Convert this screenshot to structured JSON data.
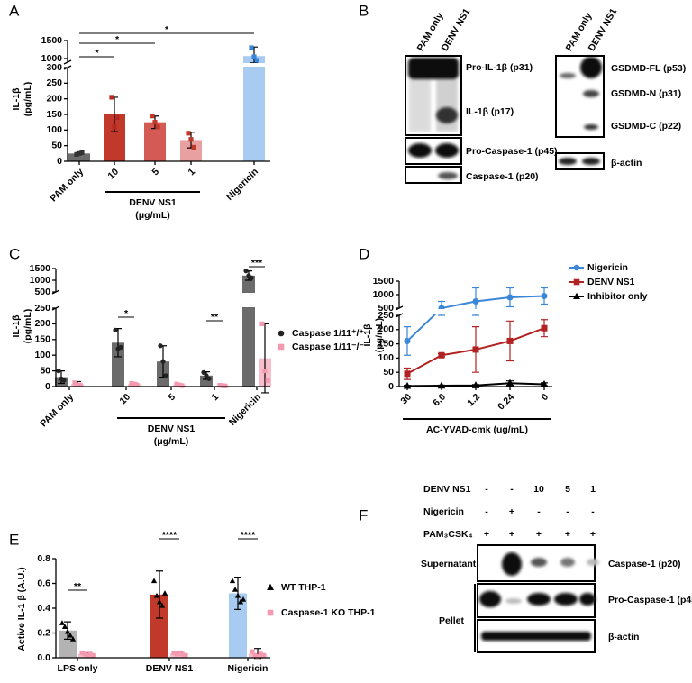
{
  "panel_labels": [
    "A",
    "B",
    "C",
    "D",
    "E",
    "F"
  ],
  "chart_data": [
    {
      "type": "bar",
      "ylabel": [
        "IL-1β",
        "(pg/mL)"
      ],
      "categories": [
        "PAM only",
        "10",
        "5",
        "1",
        "Nigericin"
      ],
      "group_label": [
        "DENV NS1",
        "(μg/mL)"
      ],
      "ylim": [
        0,
        1500
      ],
      "ybreak": [
        300,
        900
      ],
      "yticks": [
        0,
        50,
        100,
        150,
        200,
        250,
        300,
        1000,
        1500
      ],
      "annotations": [
        "*",
        "*",
        "*"
      ],
      "series": [
        {
          "colors": [
            "#6b6b6b",
            "#c0392b",
            "#d45b55",
            "#e8a0a0",
            "#a8cbf2"
          ],
          "point_colors": [
            "#333333",
            "#b52a1f",
            "#c0392b",
            "#c0392b",
            "#3a86d9"
          ],
          "marker": "square",
          "values": [
            25,
            150,
            125,
            68,
            1070
          ],
          "errors": [
            3,
            55,
            20,
            25,
            250
          ],
          "points": [
            [
              22,
              25,
              28
            ],
            [
              205,
              110,
              140
            ],
            [
              145,
              125,
              110
            ],
            [
              90,
              70,
              45
            ],
            [
              1300,
              1050,
              950
            ]
          ]
        }
      ]
    },
    {
      "type": "bar",
      "ylabel": [
        "IL-1β",
        "(pg/mL)"
      ],
      "categories": [
        "PAM only",
        "10",
        "5",
        "1",
        "Nigericin"
      ],
      "group_label": [
        "DENV NS1",
        "(μg/mL)"
      ],
      "ylim": [
        0,
        1500
      ],
      "ybreak": [
        250,
        500
      ],
      "yticks": [
        0,
        50,
        100,
        150,
        200,
        250,
        500,
        1000,
        1500
      ],
      "annotations": [
        "*",
        "**",
        "***"
      ],
      "series": [
        {
          "name": "Caspase 1/11⁺/⁺",
          "color": "#6b6b6b",
          "point_color": "#222222",
          "marker": "circle",
          "values": [
            30,
            140,
            80,
            35,
            1200
          ],
          "errors": [
            20,
            45,
            50,
            12,
            200
          ],
          "points": [
            [
              50,
              25,
              20
            ],
            [
              180,
              120,
              125
            ],
            [
              130,
              80,
              35
            ],
            [
              45,
              35,
              25
            ],
            [
              1400,
              1200,
              1100
            ]
          ]
        },
        {
          "name": "Caspase 1/11⁻/⁻",
          "color": "#f7bfcb",
          "point_color": "#f49ab0",
          "marker": "square",
          "values": [
            8,
            8,
            5,
            3,
            90
          ],
          "errors": [
            8,
            3,
            3,
            2,
            110
          ],
          "points": [
            [
              12,
              5,
              5
            ],
            [
              10,
              8,
              5
            ],
            [
              8,
              5,
              3
            ],
            [
              4,
              3,
              2
            ],
            [
              200,
              50,
              20
            ]
          ]
        }
      ]
    },
    {
      "type": "line",
      "ylabel": [
        "IL-1β",
        "(pg/mL)"
      ],
      "categories": [
        "30",
        "6.0",
        "1.2",
        "0.24",
        "0"
      ],
      "xlabel": "AC-YVAD-cmk (ug/mL)",
      "ylim": [
        0,
        1500
      ],
      "ybreak": [
        250,
        500
      ],
      "yticks": [
        0,
        50,
        100,
        150,
        200,
        250,
        500,
        1000,
        1500
      ],
      "series": [
        {
          "name": "Nigericin",
          "color": "#3a86d9",
          "marker": "circle",
          "values": [
            160,
            500,
            750,
            900,
            950
          ],
          "errors": [
            50,
            250,
            500,
            350,
            300
          ]
        },
        {
          "name": "DENV NS1",
          "color": "#b22222",
          "marker": "square",
          "values": [
            45,
            110,
            130,
            160,
            205
          ],
          "errors": [
            20,
            5,
            80,
            70,
            30
          ]
        },
        {
          "name": "Inhibitor only",
          "color": "#000000",
          "marker": "triangle",
          "values": [
            2,
            3,
            4,
            12,
            8
          ],
          "errors": [
            2,
            2,
            3,
            8,
            5
          ]
        }
      ]
    },
    {
      "type": "bar",
      "ylabel": [
        "Active IL-1 β (A.U.)"
      ],
      "categories": [
        "LPS only",
        "DENV NS1",
        "Nigericin"
      ],
      "ylim": [
        0,
        0.8
      ],
      "yticks": [
        {
          "value": 0,
          "label": "0.0"
        },
        0.2,
        0.4,
        0.6,
        0.8
      ],
      "annotations": [
        "**",
        "****",
        "****"
      ],
      "series": [
        {
          "name": "WT THP-1",
          "colors": [
            "#b3b3b3",
            "#c0392b",
            "#a8cbf2"
          ],
          "point_color": "#000000",
          "marker": "triangle",
          "values": [
            0.22,
            0.51,
            0.52
          ],
          "errors": [
            0.07,
            0.19,
            0.13
          ],
          "points": [
            [
              0.28,
              0.25,
              0.21,
              0.18,
              0.15
            ],
            [
              0.62,
              0.5,
              0.45,
              0.42,
              0.52
            ],
            [
              0.62,
              0.55,
              0.5,
              0.45,
              0.47
            ]
          ]
        },
        {
          "name": "Caspase-1 KO THP-1",
          "color": "#f7bfcb",
          "point_color": "#f49ab0",
          "marker": "square",
          "values": [
            0.03,
            0.035,
            0.035
          ],
          "errors": [
            0.01,
            0.01,
            0.04
          ],
          "points": [
            [
              0.04,
              0.03,
              0.02,
              0.03,
              0.02
            ],
            [
              0.04,
              0.03,
              0.04,
              0.03,
              0.02
            ],
            [
              0.05,
              0.02,
              0.01,
              0.03,
              0.02
            ]
          ]
        }
      ]
    }
  ],
  "blots": {
    "B": {
      "lanes": [
        "PAM only",
        "DENV NS1"
      ],
      "left_bands": [
        "Pro-IL-1β (p31)",
        "IL-1β (p17)",
        "Pro-Caspase-1 (p45)",
        "Caspase-1 (p20)"
      ],
      "right_lanes": [
        "PAM only",
        "DENV NS1"
      ],
      "right_bands": [
        "GSDMD-FL (p53)",
        "GSDMD-N (p31)",
        "GSDMD-C (p22)",
        "β-actin"
      ]
    },
    "F": {
      "conditions": [
        {
          "name": "DENV NS1",
          "values": [
            "-",
            "-",
            "10",
            "5",
            "1"
          ]
        },
        {
          "name": "Nigericin",
          "values": [
            "-",
            "+",
            "-",
            "-",
            "-"
          ]
        },
        {
          "name": "PAM₃CSK₄",
          "values": [
            "+",
            "+",
            "+",
            "+",
            "+"
          ]
        }
      ],
      "fractions": [
        "Supernatant",
        "Pellet"
      ],
      "bands": [
        "Caspase-1 (p20)",
        "Pro-Caspase-1 (p45)",
        "β-actin"
      ]
    }
  }
}
